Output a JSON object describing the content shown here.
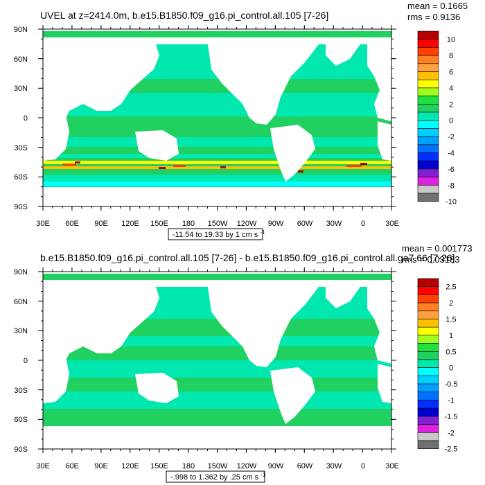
{
  "chart_data": [
    {
      "type": "heatmap",
      "title": "UVEL at z=2414.0m, b.e15.B1850.f09_g16.pi_control.all.105 [7-26]",
      "mean_text": "mean = 0.1665",
      "rms_text": "rms = 0.9136",
      "range_text": "-11.54 to 19.33 by 1 cm s",
      "range_unit_sup": "-1",
      "x_ticks": [
        "30E",
        "60E",
        "90E",
        "120E",
        "150E",
        "180",
        "150W",
        "120W",
        "90W",
        "60W",
        "30W",
        "0",
        "30E"
      ],
      "y_ticks": [
        "90N",
        "60N",
        "30N",
        "0",
        "30S",
        "60S",
        "90S"
      ],
      "colorbar_labels": [
        "10",
        "8",
        "6",
        "4",
        "2",
        "0",
        "-2",
        "-4",
        "-6",
        "-8",
        "-10"
      ],
      "colorbar_colors": [
        "#b40000",
        "#ff0000",
        "#ff4000",
        "#ff8020",
        "#ffa040",
        "#ffc000",
        "#ffff00",
        "#a0ff20",
        "#20e040",
        "#20d060",
        "#00e8b0",
        "#00ffff",
        "#00d0ff",
        "#00a0ff",
        "#0070ff",
        "#0030ff",
        "#0000d0",
        "#8020d0",
        "#e020e0",
        "#c8c8c8",
        "#707070"
      ]
    },
    {
      "type": "heatmap",
      "title": "b.e15.B1850.f09_g16.pi_control.all.105 [7-26] - b.e15.B1850.f09_g16.pi_control.all.ga7.66 [7-26]",
      "mean_text": "mean = 0.001773",
      "rms_text": "rms = 0.03183",
      "range_text": "-.998 to 1.362 by .25 cm s",
      "range_unit_sup": "-1",
      "x_ticks": [
        "30E",
        "60E",
        "90E",
        "120E",
        "150E",
        "180",
        "150W",
        "120W",
        "90W",
        "60W",
        "30W",
        "0",
        "30E"
      ],
      "y_ticks": [
        "90N",
        "60N",
        "30N",
        "0",
        "30S",
        "60S",
        "90S"
      ],
      "colorbar_labels": [
        "2.5",
        "2",
        "1.5",
        "1",
        "0.5",
        "0",
        "-0.5",
        "-1",
        "-1.5",
        "-2",
        "-2.5"
      ],
      "colorbar_colors": [
        "#b40000",
        "#ff0000",
        "#ff4000",
        "#ff8020",
        "#ffa040",
        "#ffc000",
        "#ffff00",
        "#a0ff20",
        "#20e040",
        "#20d060",
        "#00e8b0",
        "#00ffff",
        "#00d0ff",
        "#00a0ff",
        "#0070ff",
        "#0030ff",
        "#0000d0",
        "#8020d0",
        "#e020e0",
        "#c8c8c8",
        "#707070"
      ]
    }
  ]
}
